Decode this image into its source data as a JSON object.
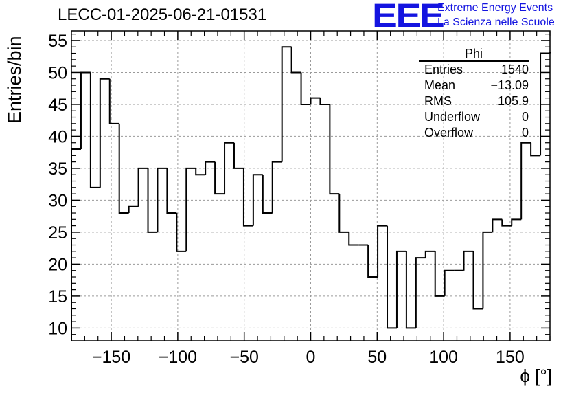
{
  "header": {
    "run_title": "LECC-01-2025-06-21-01531",
    "logo_text": "EEE",
    "logo_line1": "Extreme Energy Events",
    "logo_line2": "La Scienza nelle Scuole"
  },
  "stats_box": {
    "title": "Phi",
    "rows": [
      {
        "label": "Entries",
        "value": "1540"
      },
      {
        "label": "Mean",
        "value": "−13.09"
      },
      {
        "label": "RMS",
        "value": "105.9"
      },
      {
        "label": "Underflow",
        "value": "0"
      },
      {
        "label": "Overflow",
        "value": "0"
      }
    ]
  },
  "colors": {
    "logo": "#1414e0",
    "line": "#000000",
    "grid": "#9a9a9a"
  },
  "chart_data": {
    "type": "histogram",
    "xlabel": "ϕ [°]",
    "ylabel": "Entries/bin",
    "xlim": [
      -180,
      180
    ],
    "ylim": [
      8,
      56.5
    ],
    "bin_width": 7.2,
    "bin_start": -180,
    "x_ticks": [
      -150,
      -100,
      -50,
      0,
      50,
      100,
      150
    ],
    "x_tick_labels": [
      "−150",
      "−100",
      "−50",
      "0",
      "50",
      "100",
      "150"
    ],
    "y_ticks": [
      10,
      15,
      20,
      25,
      30,
      35,
      40,
      45,
      50,
      55
    ],
    "grid": true,
    "values": [
      38,
      50,
      32,
      49,
      42,
      28,
      29,
      35,
      25,
      35,
      28,
      22,
      35,
      34,
      36,
      31,
      39,
      35,
      26,
      34,
      28,
      36,
      54,
      50,
      45,
      46,
      45,
      31,
      25,
      23,
      23,
      18,
      26,
      10,
      22,
      10,
      21,
      22,
      15,
      19,
      19,
      22,
      13,
      25,
      27,
      26,
      27,
      39,
      37,
      53
    ]
  }
}
